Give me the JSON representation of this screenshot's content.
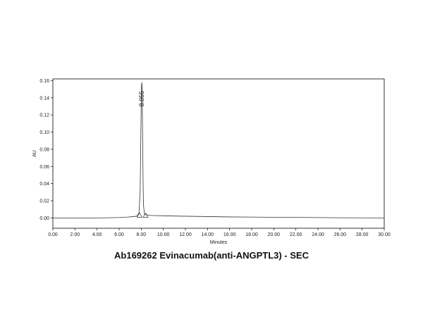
{
  "chart_data": {
    "type": "line",
    "title": "Ab169262 Evinacumab(anti-ANGPTL3) - SEC",
    "xlabel": "Minutes",
    "ylabel": "AU",
    "xlim": [
      0,
      30
    ],
    "ylim": [
      -0.012,
      0.162
    ],
    "x_ticks": [
      "0.00",
      "2.00",
      "4.00",
      "6.00",
      "8.00",
      "10.00",
      "12.00",
      "14.00",
      "16.00",
      "18.00",
      "20.00",
      "22.00",
      "24.00",
      "26.00",
      "28.00",
      "30.00"
    ],
    "y_ticks": [
      "0.00",
      "0.02",
      "0.04",
      "0.06",
      "0.08",
      "0.10",
      "0.12",
      "0.14",
      "0.16"
    ],
    "grid": false,
    "series": [
      {
        "x": [
          0.0,
          2.0,
          4.0,
          5.0,
          6.0,
          6.8,
          7.2,
          7.6,
          7.8,
          7.9,
          7.95,
          8.0,
          8.03,
          8.055,
          8.08,
          8.12,
          8.16,
          8.2,
          8.3,
          8.5,
          8.8,
          9.2,
          10.0,
          11.0,
          12.0,
          14.0,
          16.0,
          18.0,
          20.0,
          22.0,
          24.0,
          26.0,
          28.0,
          30.0
        ],
        "y": [
          0.0,
          0.0,
          0.0,
          0.0002,
          0.0005,
          0.001,
          0.0015,
          0.002,
          0.006,
          0.03,
          0.08,
          0.135,
          0.155,
          0.158,
          0.15,
          0.1,
          0.05,
          0.015,
          0.004,
          0.0035,
          0.003,
          0.0028,
          0.0025,
          0.0022,
          0.002,
          0.0016,
          0.0012,
          0.001,
          0.0008,
          0.0006,
          0.0004,
          0.0002,
          0.0001,
          0.0
        ]
      }
    ],
    "annotations": [
      {
        "text": "8.055",
        "x": 8.055,
        "y": 0.158
      }
    ],
    "baseline_markers_x": [
      7.85,
      8.4
    ]
  }
}
